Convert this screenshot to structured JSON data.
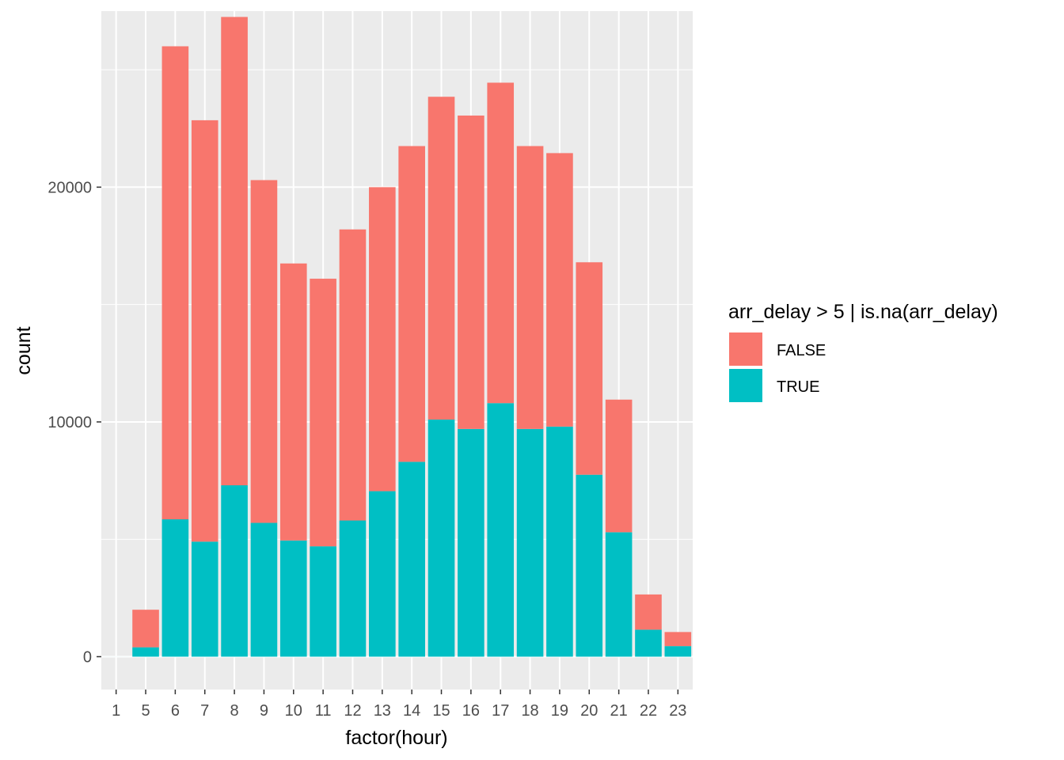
{
  "chart_data": {
    "type": "bar",
    "stacked": true,
    "xlabel": "factor(hour)",
    "ylabel": "count",
    "categories": [
      "1",
      "5",
      "6",
      "7",
      "8",
      "9",
      "10",
      "11",
      "12",
      "13",
      "14",
      "15",
      "16",
      "17",
      "18",
      "19",
      "20",
      "21",
      "22",
      "23"
    ],
    "series": [
      {
        "name": "FALSE",
        "color": "#F8766D",
        "values": [
          0,
          1600,
          20150,
          17950,
          19950,
          14600,
          11800,
          11400,
          12400,
          12950,
          13450,
          13750,
          13350,
          13650,
          12050,
          11650,
          9050,
          5650,
          1500,
          600
        ]
      },
      {
        "name": "TRUE",
        "color": "#00BFC4",
        "values": [
          1,
          400,
          5850,
          4900,
          7300,
          5700,
          4950,
          4700,
          5800,
          7050,
          8300,
          10100,
          9700,
          10800,
          9700,
          9800,
          7750,
          5300,
          1150,
          450
        ]
      }
    ],
    "ylim": [
      -1400,
      27500
    ],
    "yticks": [
      0,
      10000,
      20000
    ],
    "grid": true,
    "legend": {
      "title": "arr_delay > 5 | is.na(arr_delay)",
      "position": "right",
      "entries": [
        "FALSE",
        "TRUE"
      ]
    },
    "panel_background": "#EBEBEB",
    "grid_color": "#FFFFFF"
  }
}
